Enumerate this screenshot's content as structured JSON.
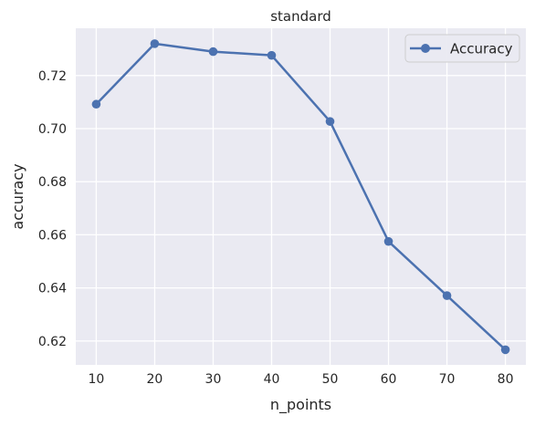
{
  "chart_data": {
    "type": "line",
    "title": "standard",
    "xlabel": "n_points",
    "ylabel": "accuracy",
    "x": [
      10,
      20,
      30,
      40,
      50,
      60,
      70,
      80
    ],
    "series": [
      {
        "name": "Accuracy",
        "values": [
          0.7092,
          0.732,
          0.729,
          0.7276,
          0.7027,
          0.6575,
          0.6371,
          0.6167
        ],
        "color": "#4c72b0",
        "marker": "circle"
      }
    ],
    "xticks": [
      10,
      20,
      30,
      40,
      50,
      60,
      70,
      80
    ],
    "xtick_labels": [
      "10",
      "20",
      "30",
      "40",
      "50",
      "60",
      "70",
      "80"
    ],
    "yticks": [
      0.62,
      0.64,
      0.66,
      0.68,
      0.7,
      0.72
    ],
    "ytick_labels": [
      "0.62",
      "0.64",
      "0.66",
      "0.68",
      "0.70",
      "0.72"
    ],
    "xlim": [
      6.5,
      83.5
    ],
    "ylim": [
      0.611,
      0.7378
    ],
    "grid": true,
    "legend_position": "top-right",
    "background_color": "#eaeaf2",
    "grid_color": "#ffffff"
  }
}
